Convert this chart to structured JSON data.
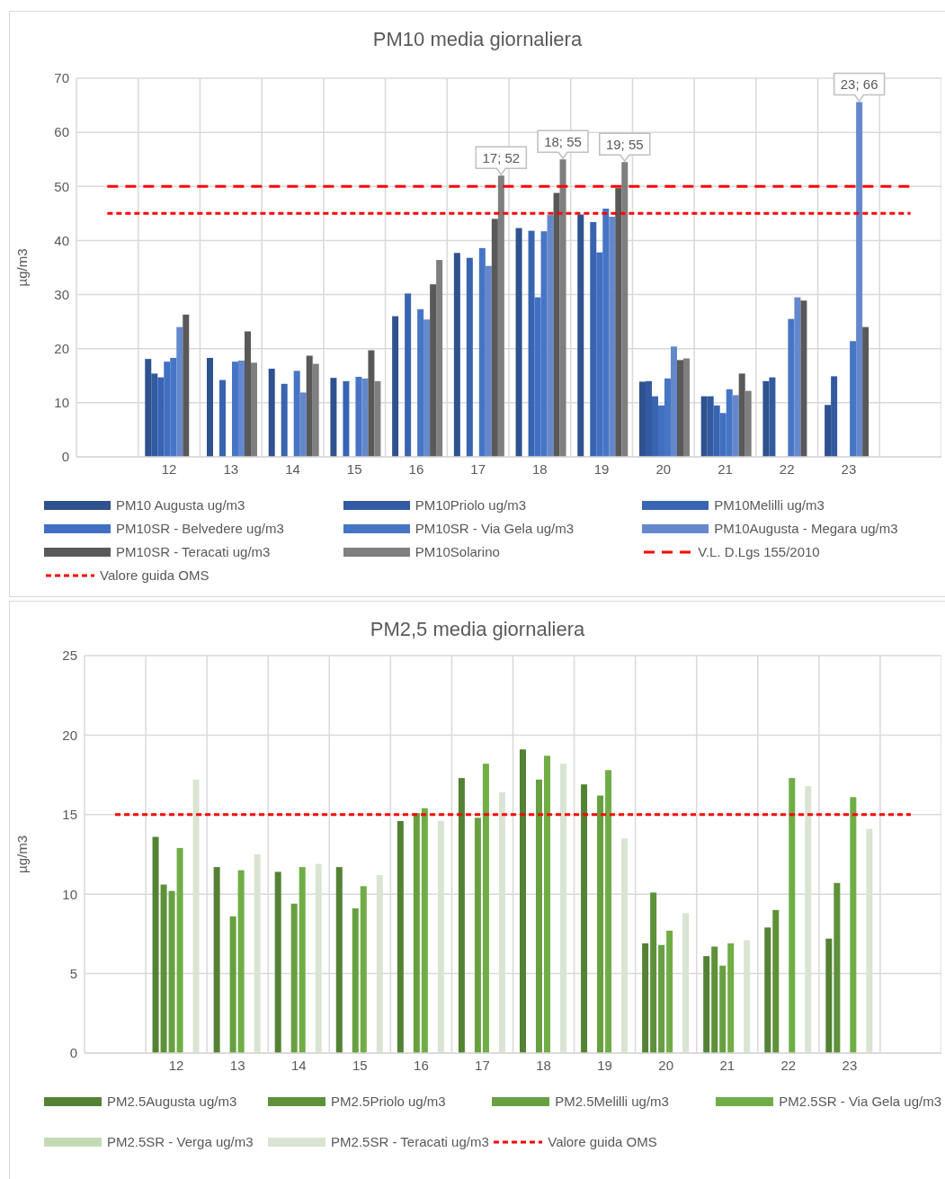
{
  "chart_data": [
    {
      "type": "bar",
      "title": "PM10 media giornaliera",
      "ylabel": "µg/m3",
      "categories": [
        null,
        "12",
        "13",
        "14",
        "15",
        "16",
        "17",
        "18",
        "19",
        "20",
        "21",
        "22",
        "23",
        null
      ],
      "series": [
        {
          "name": "PM10 Augusta ug/m3",
          "color": "#2f528f",
          "values": [
            null,
            18.1,
            18.3,
            16.3,
            14.6,
            26.0,
            37.7,
            42.3,
            44.8,
            13.9,
            11.2,
            14.0,
            9.6,
            null
          ]
        },
        {
          "name": "PM10Priolo ug/m3",
          "color": "#335aa1",
          "values": [
            null,
            15.4,
            null,
            null,
            null,
            null,
            null,
            null,
            null,
            14.0,
            11.2,
            14.7,
            14.9,
            null
          ]
        },
        {
          "name": "PM10Melilli ug/m3",
          "color": "#3864b2",
          "values": [
            null,
            14.7,
            14.2,
            13.5,
            14.0,
            30.2,
            36.8,
            41.8,
            43.4,
            11.2,
            9.5,
            null,
            null,
            null
          ]
        },
        {
          "name": "PM10SR - Belvedere ug/m3",
          "color": "#4170c2",
          "values": [
            null,
            17.6,
            null,
            null,
            null,
            null,
            null,
            29.5,
            37.8,
            9.5,
            8.1,
            null,
            null,
            null
          ]
        },
        {
          "name": "PM10SR - Via Gela ug/m3",
          "color": "#4775c6",
          "values": [
            null,
            18.3,
            17.6,
            15.9,
            14.8,
            27.3,
            38.6,
            41.7,
            45.9,
            14.5,
            12.5,
            25.5,
            21.4,
            null
          ]
        },
        {
          "name": "PM10Augusta - Megara ug/m3",
          "color": "#6588cc",
          "values": [
            null,
            24.0,
            17.8,
            11.9,
            14.5,
            25.4,
            35.3,
            44.7,
            44.4,
            20.4,
            11.4,
            29.5,
            65.6,
            null
          ],
          "value_labels": [
            null,
            null,
            null,
            null,
            null,
            null,
            null,
            null,
            null,
            null,
            null,
            null,
            "23; 66",
            null
          ]
        },
        {
          "name": "PM10SR - Teracati ug/m3",
          "color": "#595959",
          "values": [
            null,
            26.3,
            23.2,
            18.7,
            19.7,
            31.9,
            44.0,
            48.8,
            49.7,
            17.9,
            15.4,
            28.9,
            24.0,
            null
          ]
        },
        {
          "name": "PM10Solarino",
          "color": "#7f7f7f",
          "values": [
            null,
            null,
            17.4,
            17.2,
            14.0,
            36.4,
            52.0,
            55.0,
            54.5,
            18.2,
            12.2,
            null,
            null,
            null
          ],
          "value_labels": [
            null,
            null,
            null,
            null,
            null,
            null,
            "17; 52",
            "18; 55",
            "19; 55",
            null,
            null,
            null,
            null,
            null
          ]
        }
      ],
      "ref_lines": [
        {
          "axis": "y",
          "value": 50,
          "label": "V.L. D.Lgs 155/2010",
          "color": "#ff0000",
          "line_style": "dashed"
        },
        {
          "axis": "y",
          "value": 45,
          "label": "Valore guida OMS",
          "color": "#ff0000",
          "line_style": "dotted"
        }
      ],
      "ylim": [
        0,
        70
      ],
      "yticks": [
        0,
        10,
        20,
        30,
        40,
        50,
        60,
        70
      ],
      "grid": true,
      "legend": "bottom"
    },
    {
      "type": "bar",
      "title": "PM2,5 media giornaliera",
      "ylabel": "µg/m3",
      "categories": [
        null,
        "12",
        "13",
        "14",
        "15",
        "16",
        "17",
        "18",
        "19",
        "20",
        "21",
        "22",
        "23",
        null
      ],
      "series": [
        {
          "name": "PM2.5Augusta ug/m3",
          "color": "#548235",
          "values": [
            null,
            13.6,
            11.7,
            11.4,
            11.7,
            14.6,
            17.3,
            19.1,
            16.9,
            6.9,
            6.1,
            7.9,
            7.2,
            null
          ]
        },
        {
          "name": "PM2.5Priolo ug/m3",
          "color": "#5e9139",
          "values": [
            null,
            10.6,
            null,
            null,
            null,
            null,
            null,
            null,
            null,
            10.1,
            6.7,
            9.0,
            10.7,
            null
          ]
        },
        {
          "name": "PM2.5Melilli ug/m3",
          "color": "#67a040",
          "values": [
            null,
            10.2,
            8.6,
            9.4,
            9.1,
            15.1,
            14.8,
            17.2,
            16.2,
            6.8,
            5.5,
            null,
            null,
            null
          ]
        },
        {
          "name": "PM2.5SR - Via Gela ug/m3",
          "color": "#70ad47",
          "values": [
            null,
            12.9,
            11.5,
            11.7,
            10.5,
            15.4,
            18.2,
            18.7,
            17.8,
            7.7,
            6.9,
            17.3,
            16.1,
            null
          ]
        },
        {
          "name": "PM2.5SR - Verga  ug/m3",
          "color": "#c5dbb6",
          "values": [
            null,
            null,
            null,
            null,
            null,
            null,
            null,
            null,
            null,
            null,
            null,
            null,
            null,
            null
          ]
        },
        {
          "name": "PM2.5SR - Teracati ug/m3",
          "color": "#d9e5d2",
          "values": [
            null,
            17.2,
            12.5,
            11.9,
            11.2,
            14.6,
            16.4,
            18.2,
            13.5,
            8.8,
            7.1,
            16.8,
            14.1,
            null
          ]
        }
      ],
      "ref_lines": [
        {
          "axis": "y",
          "value": 15,
          "label": "Valore guida OMS",
          "color": "#ff0000",
          "line_style": "dotted"
        }
      ],
      "ylim": [
        0,
        25
      ],
      "yticks": [
        0,
        5,
        10,
        15,
        20,
        25
      ],
      "grid": true,
      "legend": "bottom"
    }
  ]
}
